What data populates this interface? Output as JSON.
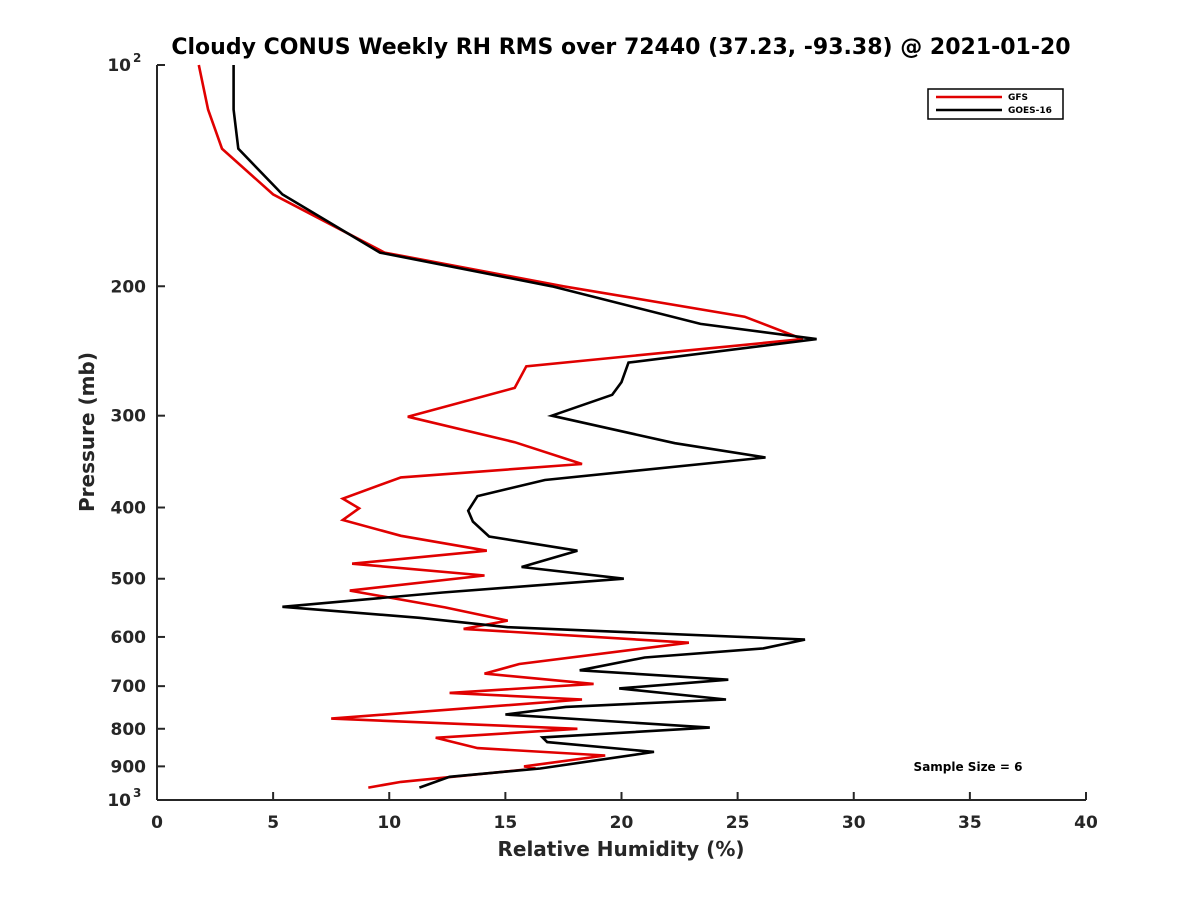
{
  "chart_data": {
    "type": "line",
    "title": "Cloudy CONUS Weekly RH RMS over 72440 (37.23, -93.38) @ 2021-01-20",
    "xlabel": "Relative Humidity (%)",
    "ylabel": "Pressure (mb)",
    "xlim": [
      0,
      40
    ],
    "ylim": [
      100,
      1000
    ],
    "y_scale": "log",
    "y_reversed": true,
    "grid": false,
    "legend_position": "top-right",
    "x_ticks": [
      "0",
      "5",
      "10",
      "15",
      "20",
      "25",
      "30",
      "35",
      "40"
    ],
    "y_ticks": [
      {
        "value": 100,
        "base": "10",
        "exp": "2"
      },
      {
        "value": 200,
        "label": "200"
      },
      {
        "value": 300,
        "label": "300"
      },
      {
        "value": 400,
        "label": "400"
      },
      {
        "value": 500,
        "label": "500"
      },
      {
        "value": 600,
        "label": "600"
      },
      {
        "value": 700,
        "label": "700"
      },
      {
        "value": 800,
        "label": "800"
      },
      {
        "value": 900,
        "label": "900"
      },
      {
        "value": 1000,
        "base": "10",
        "exp": "3"
      }
    ],
    "annotation": "Sample Size = 6",
    "series": [
      {
        "name": "GFS",
        "color": "#e00000",
        "points": [
          [
            1.8,
            100
          ],
          [
            2.2,
            115
          ],
          [
            2.8,
            130
          ],
          [
            5.0,
            150
          ],
          [
            9.8,
            180
          ],
          [
            17.5,
            200
          ],
          [
            25.3,
            220
          ],
          [
            27.8,
            236
          ],
          [
            15.9,
            257
          ],
          [
            15.4,
            275
          ],
          [
            10.8,
            301
          ],
          [
            15.4,
            326
          ],
          [
            18.3,
            349
          ],
          [
            10.5,
            364
          ],
          [
            8.0,
            389
          ],
          [
            8.7,
            401
          ],
          [
            8.0,
            416
          ],
          [
            10.5,
            437
          ],
          [
            14.2,
            458
          ],
          [
            8.4,
            477
          ],
          [
            14.1,
            495
          ],
          [
            8.3,
            519
          ],
          [
            12.4,
            547
          ],
          [
            15.1,
            570
          ],
          [
            13.2,
            585
          ],
          [
            22.9,
            611
          ],
          [
            15.6,
            653
          ],
          [
            14.1,
            673
          ],
          [
            18.8,
            695
          ],
          [
            12.6,
            715
          ],
          [
            18.3,
            730
          ],
          [
            7.5,
            775
          ],
          [
            18.1,
            800
          ],
          [
            12.0,
            823
          ],
          [
            13.8,
            850
          ],
          [
            19.3,
            870
          ],
          [
            15.8,
            900
          ],
          [
            16.3,
            906
          ],
          [
            10.5,
            945
          ],
          [
            9.1,
            962
          ]
        ]
      },
      {
        "name": "GOES-16",
        "color": "#000000",
        "points": [
          [
            3.3,
            100
          ],
          [
            3.3,
            115
          ],
          [
            3.5,
            130
          ],
          [
            5.4,
            150
          ],
          [
            9.6,
            180
          ],
          [
            17.0,
            200
          ],
          [
            23.4,
            225
          ],
          [
            28.4,
            236
          ],
          [
            20.3,
            254
          ],
          [
            20.0,
            270
          ],
          [
            19.6,
            281
          ],
          [
            17.0,
            300
          ],
          [
            22.3,
            327
          ],
          [
            26.2,
            342
          ],
          [
            16.7,
            367
          ],
          [
            13.8,
            386
          ],
          [
            13.4,
            404
          ],
          [
            13.6,
            418
          ],
          [
            14.3,
            438
          ],
          [
            18.1,
            458
          ],
          [
            15.7,
            482
          ],
          [
            20.1,
            500
          ],
          [
            12.3,
            522
          ],
          [
            5.4,
            546
          ],
          [
            11.3,
            565
          ],
          [
            15.1,
            582
          ],
          [
            27.9,
            605
          ],
          [
            26.1,
            622
          ],
          [
            21.0,
            640
          ],
          [
            18.2,
            666
          ],
          [
            24.6,
            686
          ],
          [
            19.9,
            705
          ],
          [
            24.5,
            730
          ],
          [
            17.6,
            747
          ],
          [
            15.0,
            765
          ],
          [
            23.8,
            797
          ],
          [
            16.6,
            822
          ],
          [
            16.8,
            834
          ],
          [
            21.4,
            860
          ],
          [
            16.5,
            906
          ],
          [
            12.6,
            930
          ],
          [
            11.3,
            962
          ]
        ]
      }
    ]
  }
}
